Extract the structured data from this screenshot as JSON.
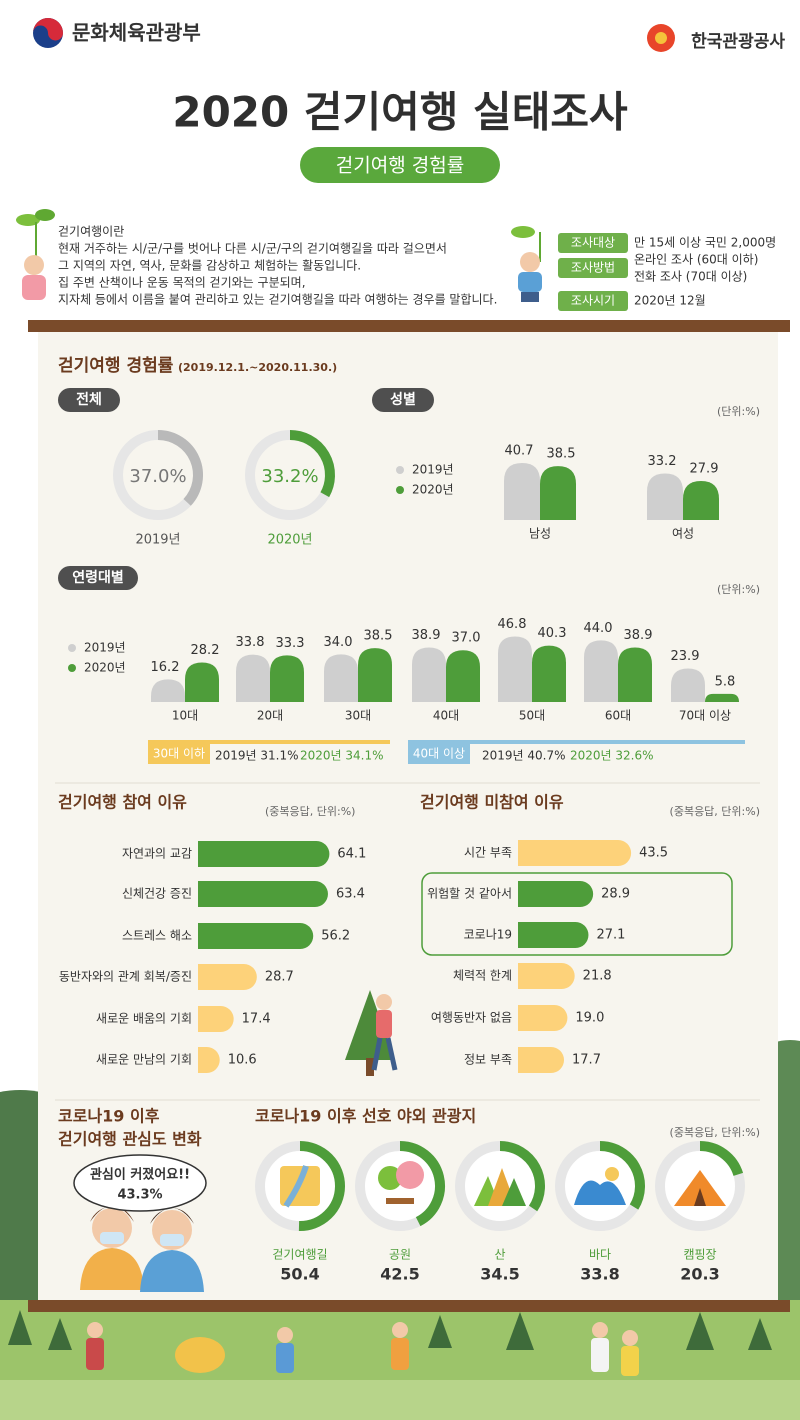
{
  "header": {
    "ministry": "문화체육관광부",
    "agency": "한국관광공사",
    "title": "2020 걷기여행 실태조사",
    "subtitle": "걷기여행 경험률"
  },
  "intro": {
    "lines": [
      "걷기여행이란",
      "현재 거주하는 시/군/구를 벗어나 다른 시/군/구의 걷기여행길을 따라 걸으면서",
      "그 지역의 자연, 역사, 문화를 감상하고 체험하는 활동입니다.",
      "집 주변 산책이나 운동 목적의 걷기와는 구분되며,",
      "지자체 등에서 이름을 붙여 관리하고 있는 걷기여행길을 따라 여행하는 경우를 말합니다."
    ]
  },
  "survey": [
    {
      "label": "조사대상",
      "text": [
        "만 15세 이상 국민 2,000명"
      ]
    },
    {
      "label": "조사방법",
      "text": [
        "온라인 조사 (60대 이하)",
        "전화 조사 (70대 이상)"
      ]
    },
    {
      "label": "조사시기",
      "text": [
        "2020년 12월"
      ]
    }
  ],
  "experience": {
    "title": "걷기여행 경험률",
    "period": "(2019.12.1.~2020.11.30.)",
    "overall": {
      "tag": "전체",
      "years": [
        "2019년",
        "2020년"
      ],
      "values": [
        37.0,
        33.2
      ],
      "value_labels": [
        "37.0%",
        "33.2%"
      ]
    },
    "gender": {
      "tag": "성별",
      "unit": "(단위:%)",
      "categories": [
        "남성",
        "여성"
      ],
      "series": [
        {
          "name": "2019년",
          "values": [
            40.7,
            33.2
          ]
        },
        {
          "name": "2020년",
          "values": [
            38.5,
            27.9
          ]
        }
      ]
    },
    "age": {
      "tag": "연령대별",
      "unit": "(단위:%)",
      "categories": [
        "10대",
        "20대",
        "30대",
        "40대",
        "50대",
        "60대",
        "70대 이상"
      ],
      "series": [
        {
          "name": "2019년",
          "values": [
            16.2,
            33.8,
            34.0,
            38.9,
            46.8,
            44.0,
            23.9
          ],
          "value_labels": [
            "16.2",
            "33.8",
            "34.0",
            "38.9",
            "46.8",
            "44.0",
            "23.9"
          ]
        },
        {
          "name": "2020년",
          "values": [
            28.2,
            33.3,
            38.5,
            37.0,
            40.3,
            38.9,
            5.8
          ],
          "value_labels": [
            "28.2",
            "33.3",
            "38.5",
            "37.0",
            "40.3",
            "38.9",
            "5.8"
          ]
        }
      ],
      "summary": [
        {
          "tag": "30대 이하",
          "y2019": "2019년 31.1%",
          "y2020": "2020년 34.1%"
        },
        {
          "tag": "40대 이상",
          "y2019": "2019년 40.7%",
          "y2020": "2020년 32.6%"
        }
      ]
    }
  },
  "reasons": {
    "title": "걷기여행 참여 이유",
    "unit": "(중복응답, 단위:%)",
    "categories": [
      "자연과의 교감",
      "신체건강 증진",
      "스트레스 해소",
      "동반자와의 관계 회복/증진",
      "새로운 배움의 기회",
      "새로운 만남의 기회"
    ],
    "values": [
      64.1,
      63.4,
      56.2,
      28.7,
      17.4,
      10.6
    ]
  },
  "non_reasons": {
    "title": "걷기여행 미참여 이유",
    "unit": "(중복응답, 단위:%)",
    "categories": [
      "시간 부족",
      "위험할 것 같아서",
      "코로나19",
      "체력적 한계",
      "여행동반자 없음",
      "정보 부족"
    ],
    "values": [
      43.5,
      28.9,
      27.1,
      21.8,
      19.0,
      17.7
    ],
    "value_labels": [
      "43.5",
      "28.9",
      "27.1",
      "21.8",
      "19.0",
      "17.7"
    ]
  },
  "covid_interest": {
    "title": [
      "코로나19 이후",
      "걷기여행 관심도 변화"
    ],
    "bubble": "관심이 커졌어요!!",
    "value": 43.3,
    "value_label": "43.3%"
  },
  "preferred": {
    "title": "코로나19 이후 선호 야외 관광지",
    "unit": "(중복응답, 단위:%)",
    "categories": [
      "걷기여행길",
      "공원",
      "산",
      "바다",
      "캠핑장"
    ],
    "values": [
      50.4,
      42.5,
      34.5,
      33.8,
      20.3
    ]
  }
}
